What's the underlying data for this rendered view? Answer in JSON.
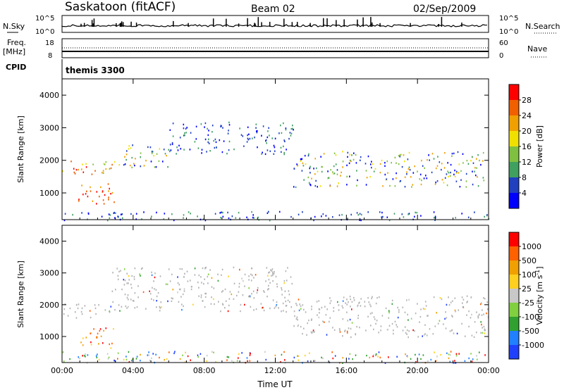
{
  "header": {
    "station": "Saskatoon (fitACF)",
    "beam": "Beam 02",
    "date": "02/Sep/2009"
  },
  "panels": {
    "nsky": {
      "left_label": "N.Sky",
      "right_label": "N.Search",
      "left_ticks": [
        "10^5",
        "10^0"
      ],
      "right_ticks": [
        "10^5",
        "10^0"
      ]
    },
    "freq": {
      "left_label_1": "Freq.",
      "left_label_2": "[MHz]",
      "right_label": "Nave",
      "left_ticks": [
        "18",
        "8"
      ],
      "right_ticks": [
        "60",
        "0"
      ]
    },
    "cpid": {
      "label": "CPID",
      "value": "themis 3300"
    }
  },
  "colors": {
    "power_scale": [
      "#0000ff",
      "#2040c0",
      "#40a060",
      "#80c040",
      "#f0e000",
      "#f0a000",
      "#f06000",
      "#ff0000"
    ],
    "velocity_scale": [
      "#2040ff",
      "#2080ff",
      "#30a030",
      "#80d040",
      "#c8c8c8",
      "#ffd020",
      "#f0a000",
      "#ff6000",
      "#ff0000"
    ],
    "ground_scatter": "#b4b4b4"
  },
  "chart_data": [
    {
      "type": "heatmap",
      "name": "power",
      "xlabel": "",
      "ylabel": "Slant Range [km]",
      "xlim": [
        0,
        24
      ],
      "ylim": [
        180,
        4500
      ],
      "y_ticks": [
        "1000",
        "2000",
        "3000",
        "4000"
      ],
      "x_ticks": [
        "00:00",
        "04:00",
        "08:00",
        "12:00",
        "16:00",
        "20:00",
        "00:00"
      ],
      "colorbar_label": "Power [dB]",
      "colorbar_ticks": [
        "4",
        "8",
        "12",
        "16",
        "20",
        "24",
        "28"
      ],
      "features": [
        {
          "t0": 0.0,
          "t1": 2.8,
          "r0": 1550,
          "r1": 2050,
          "level": "high"
        },
        {
          "t0": 0.9,
          "t1": 3.0,
          "r0": 600,
          "r1": 1300,
          "level": "very high"
        },
        {
          "t0": 2.8,
          "t1": 6.0,
          "r0": 1800,
          "r1": 2500,
          "level": "medium"
        },
        {
          "t0": 6.0,
          "t1": 13.0,
          "r0": 2200,
          "r1": 3200,
          "level": "low"
        },
        {
          "t0": 13.0,
          "t1": 24.0,
          "r0": 1200,
          "r1": 2300,
          "level": "medium"
        },
        {
          "t0": 0.0,
          "t1": 24.0,
          "r0": 180,
          "r1": 450,
          "level": "low"
        }
      ]
    },
    {
      "type": "heatmap",
      "name": "velocity",
      "xlabel": "Time UT",
      "ylabel": "Slant Range [km]",
      "xlim": [
        0,
        24
      ],
      "ylim": [
        180,
        4500
      ],
      "y_ticks": [
        "1000",
        "2000",
        "3000",
        "4000"
      ],
      "x_ticks": [
        "00:00",
        "04:00",
        "08:00",
        "12:00",
        "16:00",
        "20:00",
        "00:00"
      ],
      "colorbar_label": "Velocity [m s",
      "colorbar_superscript": "-1",
      "colorbar_label_end": "]",
      "colorbar_ticks": [
        "1000",
        "500",
        "100",
        "25",
        "-25",
        "-100",
        "-500",
        "-1000"
      ],
      "features": [
        {
          "t0": 0.0,
          "t1": 2.8,
          "r0": 1550,
          "r1": 2050,
          "level": "ground"
        },
        {
          "t0": 1.0,
          "t1": 3.0,
          "r0": 650,
          "r1": 1300,
          "level": "towards"
        },
        {
          "t0": 2.8,
          "t1": 13.0,
          "r0": 1800,
          "r1": 3200,
          "level": "ground"
        },
        {
          "t0": 13.0,
          "t1": 24.0,
          "r0": 1000,
          "r1": 2300,
          "level": "ground"
        },
        {
          "t0": 0.0,
          "t1": 24.0,
          "r0": 180,
          "r1": 550,
          "level": "mixed"
        }
      ]
    }
  ]
}
